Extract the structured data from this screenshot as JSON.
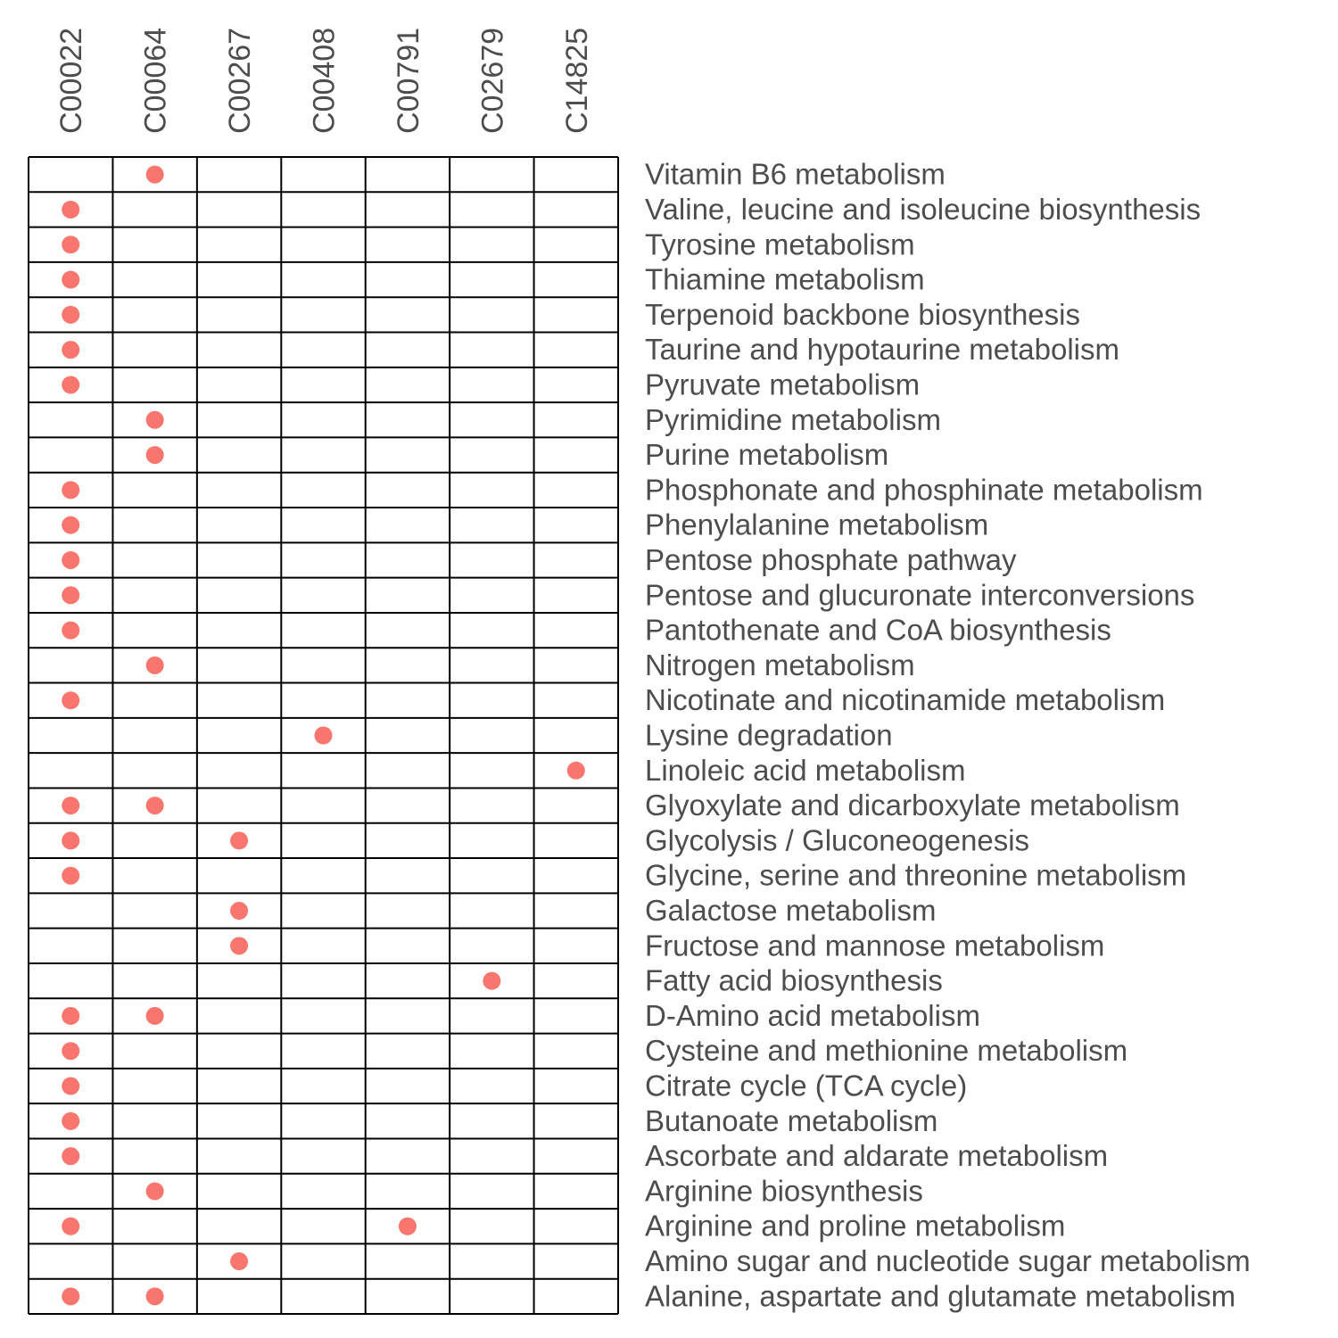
{
  "chart_data": {
    "type": "heatmap",
    "columns": [
      "C00022",
      "C00064",
      "C00267",
      "C00408",
      "C00791",
      "C02679",
      "C14825"
    ],
    "rows": [
      "Vitamin B6 metabolism",
      "Valine, leucine and isoleucine biosynthesis",
      "Tyrosine metabolism",
      "Thiamine metabolism",
      "Terpenoid backbone biosynthesis",
      "Taurine and hypotaurine metabolism",
      "Pyruvate metabolism",
      "Pyrimidine metabolism",
      "Purine metabolism",
      "Phosphonate and phosphinate metabolism",
      "Phenylalanine metabolism",
      "Pentose phosphate pathway",
      "Pentose and glucuronate interconversions",
      "Pantothenate and CoA biosynthesis",
      "Nitrogen metabolism",
      "Nicotinate and nicotinamide metabolism",
      "Lysine degradation",
      "Linoleic acid metabolism",
      "Glyoxylate and dicarboxylate metabolism",
      "Glycolysis / Gluconeogenesis",
      "Glycine, serine and threonine metabolism",
      "Galactose metabolism",
      "Fructose and mannose metabolism",
      "Fatty acid biosynthesis",
      "D-Amino acid metabolism",
      "Cysteine and methionine metabolism",
      "Citrate cycle (TCA cycle)",
      "Butanoate metabolism",
      "Ascorbate and aldarate metabolism",
      "Arginine biosynthesis",
      "Arginine and proline metabolism",
      "Amino sugar and nucleotide sugar metabolism",
      "Alanine, aspartate and glutamate metabolism"
    ],
    "membership": [
      [
        "C00064"
      ],
      [
        "C00022"
      ],
      [
        "C00022"
      ],
      [
        "C00022"
      ],
      [
        "C00022"
      ],
      [
        "C00022"
      ],
      [
        "C00022"
      ],
      [
        "C00064"
      ],
      [
        "C00064"
      ],
      [
        "C00022"
      ],
      [
        "C00022"
      ],
      [
        "C00022"
      ],
      [
        "C00022"
      ],
      [
        "C00022"
      ],
      [
        "C00064"
      ],
      [
        "C00022"
      ],
      [
        "C00408"
      ],
      [
        "C14825"
      ],
      [
        "C00022",
        "C00064"
      ],
      [
        "C00022",
        "C00267"
      ],
      [
        "C00022"
      ],
      [
        "C00267"
      ],
      [
        "C00267"
      ],
      [
        "C02679"
      ],
      [
        "C00022",
        "C00064"
      ],
      [
        "C00022"
      ],
      [
        "C00022"
      ],
      [
        "C00022"
      ],
      [
        "C00022"
      ],
      [
        "C00064"
      ],
      [
        "C00022",
        "C00791"
      ],
      [
        "C00267"
      ],
      [
        "C00022",
        "C00064"
      ]
    ],
    "dot_color": "#f8766d",
    "grid_color": "#000000",
    "label_color": "#4d4d4d",
    "column_label_orientation": "vertical",
    "row_label_position": "right"
  }
}
